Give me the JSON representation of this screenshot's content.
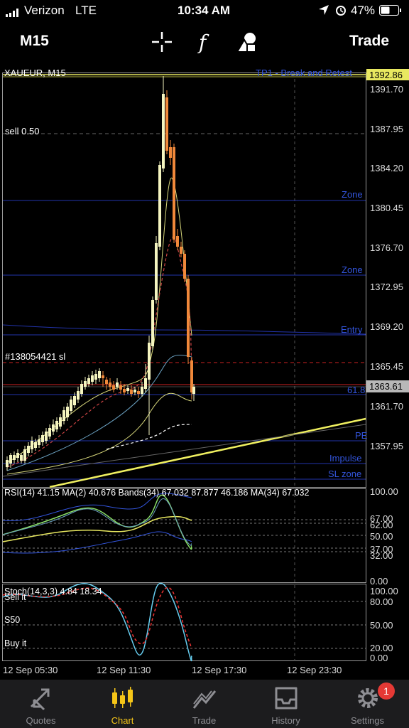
{
  "status_bar": {
    "carrier": "Verizon",
    "network": "LTE",
    "time": "10:34 AM",
    "battery": "47%"
  },
  "toolbar": {
    "timeframe": "M15",
    "trade_label": "Trade",
    "icons": [
      "crosshair-icon",
      "function-icon",
      "objects-icon"
    ]
  },
  "chart": {
    "symbol_label": "XAUEUR, M15",
    "current_price": "1363.61",
    "top_price": "1392.86",
    "price_ticks": [
      "1391.70",
      "1387.95",
      "1384.20",
      "1380.45",
      "1376.70",
      "1372.95",
      "1369.20",
      "1365.45",
      "1361.70",
      "1357.95"
    ],
    "line_labels": {
      "tp1": "TP1 - Break and Retest",
      "sell": "sell 0.50",
      "zone1": "Zone",
      "zone2": "Zone",
      "entry": "Entry",
      "order": "#138054421 sl",
      "fib": "61.8",
      "pe": "PE",
      "impulse": "Impulse",
      "sl_zone": "SL zone"
    },
    "rsi_label": "RSI(14) 41.15 MA(2) 40.676 Bands(34) 67.032 87.877 46.186 MA(34) 67.032",
    "rsi_ticks": [
      "100.00",
      "67.00",
      "62.00",
      "50.00",
      "37.00",
      "32.00",
      "0.00"
    ],
    "stoch_label": "Stoch(14,3,3) 4.84 18.34",
    "stoch_ticks": [
      "100.00",
      "80.00",
      "50.00",
      "20.00",
      "0.00"
    ],
    "stoch_levels": {
      "sell": "Sell it",
      "mid": "S50",
      "buy": "Buy it"
    },
    "time_ticks": [
      "12 Sep 05:30",
      "12 Sep 11:30",
      "12 Sep 17:30",
      "12 Sep 23:30"
    ],
    "colors": {
      "bull": "#f5f5c0",
      "bear": "#f0883a",
      "level_blue": "#2233aa",
      "trend_yellow": "#f0f060",
      "sl_red": "#cc2222"
    }
  },
  "tabs": [
    {
      "label": "Quotes",
      "icon": "quotes-icon"
    },
    {
      "label": "Chart",
      "icon": "chart-candles-icon"
    },
    {
      "label": "Trade",
      "icon": "trade-icon"
    },
    {
      "label": "History",
      "icon": "history-icon"
    },
    {
      "label": "Settings",
      "icon": "settings-icon",
      "badge": "1"
    }
  ]
}
